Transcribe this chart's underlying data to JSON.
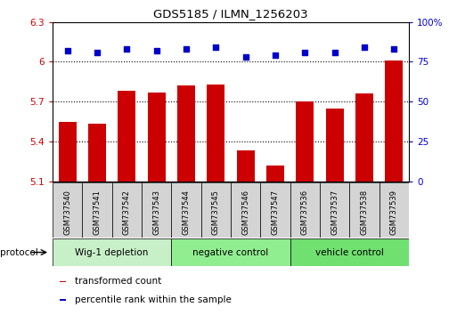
{
  "title": "GDS5185 / ILMN_1256203",
  "samples": [
    "GSM737540",
    "GSM737541",
    "GSM737542",
    "GSM737543",
    "GSM737544",
    "GSM737545",
    "GSM737546",
    "GSM737547",
    "GSM737536",
    "GSM737537",
    "GSM737538",
    "GSM737539"
  ],
  "bar_values": [
    5.55,
    5.53,
    5.78,
    5.77,
    5.82,
    5.83,
    5.33,
    5.22,
    5.7,
    5.65,
    5.76,
    6.01
  ],
  "percentile_values": [
    82,
    81,
    83,
    82,
    83,
    84,
    78,
    79,
    81,
    81,
    84,
    83
  ],
  "ylim_left": [
    5.1,
    6.3
  ],
  "ylim_right": [
    0,
    100
  ],
  "yticks_left": [
    5.1,
    5.4,
    5.7,
    6.0,
    6.3
  ],
  "ytick_labels_left": [
    "5.1",
    "5.4",
    "5.7",
    "6",
    "6.3"
  ],
  "yticks_right": [
    0,
    25,
    50,
    75,
    100
  ],
  "ytick_labels_right": [
    "0",
    "25",
    "50",
    "75",
    "100%"
  ],
  "hlines": [
    6.0,
    5.7,
    5.4
  ],
  "bar_color": "#cc0000",
  "dot_color": "#0000cc",
  "groups": [
    {
      "label": "Wig-1 depletion",
      "start": 0,
      "end": 4,
      "color": "#c8f0c8"
    },
    {
      "label": "negative control",
      "start": 4,
      "end": 8,
      "color": "#90ee90"
    },
    {
      "label": "vehicle control",
      "start": 8,
      "end": 12,
      "color": "#70e070"
    }
  ],
  "legend_items": [
    {
      "label": "transformed count",
      "color": "#cc0000"
    },
    {
      "label": "percentile rank within the sample",
      "color": "#0000cc"
    }
  ],
  "protocol_label": "protocol",
  "background_color": "#ffffff",
  "bar_width": 0.6,
  "fig_width": 5.13,
  "fig_height": 3.54,
  "dpi": 100
}
